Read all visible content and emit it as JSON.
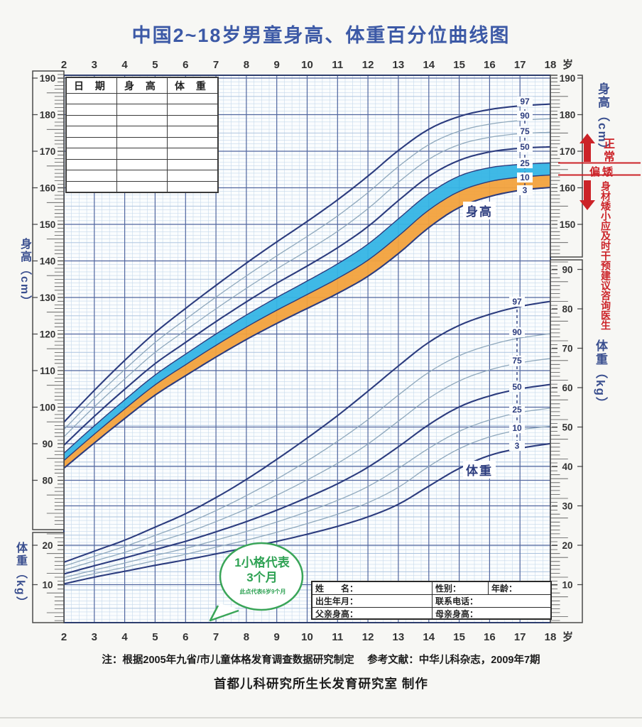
{
  "title": "中国2~18岁男童身高、体重百分位曲线图",
  "record_table": {
    "headers": [
      "日 期",
      "身 高",
      "体 重"
    ],
    "empty_rows": 9
  },
  "margin_labels": {
    "left_height": "身高（cm）",
    "left_weight": "体重（kg）",
    "right_height": "身高（cm）",
    "right_weight": "体重（kg）"
  },
  "right_annotation": {
    "normal": "正常",
    "shortish": "偏矮",
    "advice": "身材矮小应及时干预建议咨询医生",
    "line_color": "#cc2328"
  },
  "curve_group_labels": {
    "height": "身高",
    "weight": "体重"
  },
  "bubble": {
    "big": "1小格代表3个月",
    "small": "此点代表6岁9个月"
  },
  "form": {
    "name": "姓　　名：",
    "gender": "性别：",
    "age": "年龄：",
    "birth": "出生年月：",
    "phone": "联系电话：",
    "father": "父亲身高：",
    "mother": "母亲身高："
  },
  "notes": {
    "line1": "注：根据2005年九省/市儿童体格发育调查数据研究制定　 参考文献：中华儿科杂志，2009年7期",
    "line2": "首都儿科研究所生长发育研究室 制作"
  },
  "colors": {
    "title": "#3c59a6",
    "band_blue": "#35b5e5",
    "band_orange": "#f2a23d",
    "curve_dark": "#2c3c7e",
    "curve_light": "#8fa8bc",
    "grid_minor": "#c6d9ec",
    "grid_medium": "#aac2dd",
    "grid_major": "#51669f",
    "red": "#cc2328"
  },
  "chart_data": {
    "type": "line",
    "x": [
      2,
      3,
      4,
      5,
      6,
      7,
      8,
      9,
      10,
      11,
      12,
      13,
      14,
      15,
      16,
      17,
      18
    ],
    "x_unit": "岁",
    "percentile_labels": [
      "97",
      "90",
      "75",
      "50",
      "25",
      "10",
      "3"
    ],
    "axes": {
      "height_ticks_left": [
        190,
        180,
        170,
        160,
        150,
        140,
        130,
        120,
        110,
        100,
        90,
        80
      ],
      "height_ticks_right": [
        190,
        180,
        170,
        160,
        150
      ],
      "weight_ticks_right": [
        90,
        80,
        70,
        60,
        50,
        40,
        30,
        20,
        10
      ],
      "weight_ticks_left": [
        20,
        10
      ],
      "height_ylim": [
        80,
        190
      ],
      "weight_ylim": [
        0,
        95
      ],
      "x_ylim": [
        2,
        18
      ],
      "grid": "on",
      "minor_grid_note": "1小格=3个月"
    },
    "height_cm": {
      "series": [
        {
          "name": "P97",
          "values": [
            95.9,
            104.6,
            112.8,
            120.4,
            127.0,
            133.3,
            139.4,
            145.2,
            150.8,
            156.7,
            163.2,
            170.2,
            176.0,
            179.5,
            181.4,
            182.4,
            182.9
          ]
        },
        {
          "name": "P90",
          "values": [
            93.9,
            102.4,
            110.3,
            117.7,
            124.0,
            130.1,
            135.9,
            141.4,
            146.7,
            152.3,
            158.7,
            165.8,
            171.8,
            175.5,
            177.4,
            178.4,
            178.9
          ]
        },
        {
          "name": "P75",
          "values": [
            91.9,
            100.1,
            107.7,
            115.0,
            121.0,
            126.9,
            132.5,
            137.8,
            142.8,
            148.1,
            154.3,
            161.5,
            167.8,
            171.8,
            173.8,
            174.8,
            175.2
          ]
        },
        {
          "name": "P50",
          "values": [
            89.6,
            97.5,
            104.9,
            111.9,
            117.7,
            123.4,
            128.8,
            133.9,
            138.6,
            143.6,
            149.4,
            156.5,
            163.1,
            167.5,
            169.8,
            170.8,
            171.2
          ]
        },
        {
          "name": "P25",
          "values": [
            87.4,
            94.9,
            102.0,
            108.8,
            114.5,
            120.0,
            125.2,
            130.0,
            134.5,
            139.2,
            144.6,
            151.5,
            158.4,
            163.2,
            165.5,
            166.4,
            166.8
          ]
        },
        {
          "name": "P10",
          "values": [
            85.4,
            92.6,
            99.5,
            106.1,
            111.6,
            116.9,
            121.9,
            126.5,
            130.8,
            135.2,
            140.2,
            146.8,
            153.9,
            159.0,
            161.7,
            162.9,
            163.5
          ]
        },
        {
          "name": "P3",
          "values": [
            83.3,
            90.2,
            96.9,
            103.3,
            108.6,
            113.7,
            118.5,
            122.9,
            127.0,
            131.1,
            135.8,
            142.0,
            149.1,
            154.6,
            157.6,
            159.3,
            160.1
          ]
        }
      ],
      "bands": [
        {
          "between": [
            "P25",
            "P10"
          ],
          "color": "#35b5e5"
        },
        {
          "between": [
            "P10",
            "P3"
          ],
          "color": "#f2a23d"
        }
      ]
    },
    "weight_kg": {
      "series": [
        {
          "name": "P97",
          "values": [
            15.7,
            18.5,
            21.3,
            24.6,
            28.0,
            32.1,
            36.7,
            41.8,
            47.2,
            52.9,
            59.1,
            65.5,
            71.5,
            75.8,
            78.6,
            80.6,
            81.9
          ]
        },
        {
          "name": "P90",
          "values": [
            14.7,
            17.2,
            19.7,
            22.5,
            25.4,
            28.8,
            32.6,
            36.8,
            41.4,
            46.4,
            51.9,
            58.1,
            63.9,
            68.1,
            70.8,
            72.6,
            73.7
          ]
        },
        {
          "name": "P75",
          "values": [
            13.7,
            16.0,
            18.2,
            20.7,
            23.1,
            26.0,
            29.2,
            32.7,
            36.6,
            40.8,
            45.7,
            51.5,
            57.3,
            61.7,
            64.5,
            66.3,
            67.4
          ]
        },
        {
          "name": "P50",
          "values": [
            12.7,
            14.8,
            16.8,
            18.9,
            21.0,
            23.4,
            26.0,
            28.9,
            32.1,
            35.6,
            39.8,
            45.0,
            50.6,
            55.1,
            57.9,
            59.7,
            60.8
          ]
        },
        {
          "name": "P25",
          "values": [
            11.8,
            13.7,
            15.5,
            17.4,
            19.2,
            21.3,
            23.5,
            25.9,
            28.5,
            31.4,
            34.9,
            39.5,
            44.6,
            48.9,
            51.8,
            53.7,
            54.8
          ]
        },
        {
          "name": "P10",
          "values": [
            11.0,
            12.8,
            14.4,
            16.1,
            17.7,
            19.5,
            21.3,
            23.3,
            25.5,
            27.9,
            30.8,
            34.7,
            40.0,
            44.5,
            47.5,
            49.3,
            50.2
          ]
        },
        {
          "name": "P3",
          "values": [
            10.2,
            11.9,
            13.4,
            14.9,
            16.3,
            17.8,
            19.4,
            21.0,
            22.8,
            24.8,
            27.2,
            30.4,
            35.0,
            39.5,
            42.8,
            44.6,
            45.8
          ]
        }
      ]
    }
  }
}
